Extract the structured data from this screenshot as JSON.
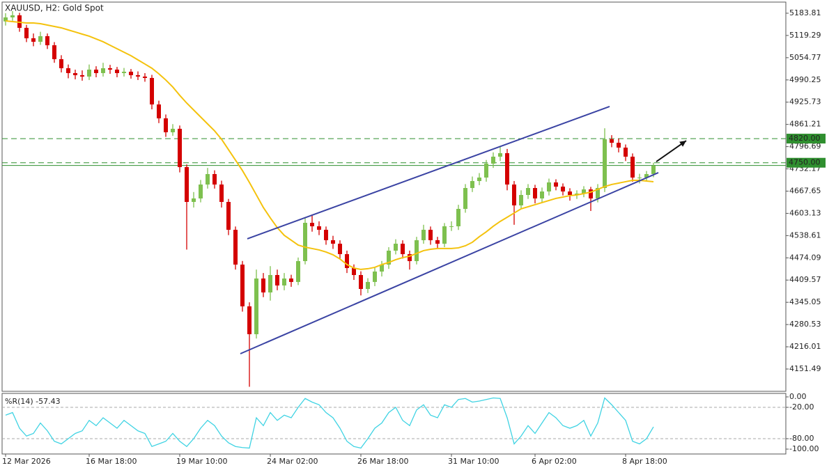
{
  "chart_data": [
    {
      "type": "candlestick",
      "title": "XAUUSD, H2:  Gold Spot",
      "categories": [
        "12 Mar 2026",
        null,
        null,
        null,
        null,
        null,
        null,
        null,
        null,
        null,
        null,
        null,
        "16 Mar 18:00",
        null,
        null,
        null,
        null,
        null,
        null,
        null,
        null,
        null,
        null,
        null,
        null,
        "19 Mar 10:00",
        null,
        null,
        null,
        null,
        null,
        null,
        null,
        null,
        null,
        null,
        null,
        null,
        "24 Mar 02:00",
        null,
        null,
        null,
        null,
        null,
        null,
        null,
        null,
        null,
        null,
        null,
        null,
        "26 Mar 18:00",
        null,
        null,
        null,
        null,
        null,
        null,
        null,
        null,
        null,
        null,
        null,
        null,
        "31 Mar 10:00",
        null,
        null,
        null,
        null,
        null,
        null,
        null,
        null,
        null,
        null,
        null,
        "6 Apr 02:00",
        null,
        null,
        null,
        null,
        null,
        null,
        null,
        null,
        null,
        null,
        null,
        null,
        "8 Apr 18:00",
        null,
        null,
        null,
        null
      ],
      "open": [
        5160.0,
        5171.7,
        5177.7,
        5141.4,
        5111.1,
        5101.0,
        5117.2,
        5090.9,
        5050.5,
        5024.2,
        5010.1,
        5004.0,
        5000.0,
        5020.2,
        5010.1,
        5024.2,
        5020.2,
        5010.1,
        5014.1,
        5004.0,
        5000.0,
        4996.0,
        4919.1,
        4878.8,
        4838.4,
        4848.5,
        4737.3,
        4636.3,
        4646.4,
        4686.8,
        4717.1,
        4686.8,
        4636.3,
        4555.5,
        4454.5,
        4333.3,
        4252.5,
        4414.1,
        4373.7,
        4424.2,
        4393.9,
        4414.1,
        4404.1,
        4464.6,
        4575.7,
        4565.6,
        4555.5,
        4525.2,
        4515.1,
        4484.8,
        4444.4,
        4424.2,
        4383.8,
        4404.1,
        4434.3,
        4454.5,
        4494.9,
        4515.1,
        4484.8,
        4464.6,
        4525.2,
        4555.5,
        4525.2,
        4515.1,
        4565.6,
        4565.6,
        4616.1,
        4676.7,
        4696.9,
        4707.0,
        4747.4,
        4767.6,
        4777.7,
        4686.8,
        4626.2,
        4656.5,
        4676.7,
        4646.4,
        4666.6,
        4692.9,
        4680.7,
        4666.6,
        4656.5,
        4660.5,
        4672.6,
        4646.4,
        4676.7,
        4818.1,
        4808.0,
        4793.9,
        4767.6,
        4707.0,
        4707.0,
        4717.1
      ],
      "high": [
        5183.8,
        5190,
        5185,
        5150,
        5125,
        5130,
        5125,
        5100,
        5062,
        5035,
        5020,
        5018,
        5035,
        5030,
        5040,
        5034,
        5028,
        5025,
        5022,
        5015,
        5010,
        5005,
        4930,
        4890,
        4862,
        4858,
        4745,
        4665,
        4700,
        4735,
        4728,
        4698,
        4645,
        4565,
        4465,
        4345,
        4440,
        4430,
        4450,
        4440,
        4430,
        4425,
        4475,
        4590,
        4600,
        4580,
        4565,
        4538,
        4525,
        4495,
        4455,
        4435,
        4415,
        4445,
        4465,
        4505,
        4528,
        4525,
        4495,
        4535,
        4570,
        4565,
        4535,
        4575,
        4580,
        4628,
        4688,
        4710,
        4720,
        4758,
        4780,
        4798,
        4790,
        4697,
        4670,
        4688,
        4686,
        4678,
        4704,
        4702,
        4690,
        4676,
        4670,
        4682,
        4680,
        4688,
        4850,
        4830,
        4820,
        4803,
        4777,
        4718,
        4726,
        4750
      ],
      "low": [
        5148,
        5162,
        5130,
        5100,
        5088,
        5092,
        5080,
        5040,
        5012,
        4995,
        4992,
        4988,
        4990,
        4998,
        5000,
        5008,
        4998,
        5000,
        4994,
        4990,
        4985,
        4905,
        4865,
        4825,
        4828,
        4722,
        4498,
        4620,
        4635,
        4675,
        4675,
        4620,
        4540,
        4440,
        4318,
        4100,
        4240,
        4360,
        4350,
        4380,
        4380,
        4390,
        4395,
        4455,
        4550,
        4540,
        4512,
        4500,
        4470,
        4430,
        4410,
        4365,
        4372,
        4392,
        4420,
        4442,
        4484,
        4472,
        4440,
        4455,
        4515,
        4512,
        4502,
        4505,
        4552,
        4555,
        4605,
        4665,
        4685,
        4695,
        4735,
        4755,
        4670,
        4570,
        4615,
        4645,
        4632,
        4635,
        4655,
        4670,
        4655,
        4640,
        4645,
        4650,
        4610,
        4635,
        4665,
        4795,
        4780,
        4755,
        4695,
        4690,
        4698,
        4708
      ],
      "close": [
        5171.7,
        5177.7,
        5141.4,
        5111.1,
        5101.0,
        5117.2,
        5090.9,
        5050.5,
        5024.2,
        5010.1,
        5004.0,
        5000.0,
        5020.2,
        5010.1,
        5024.2,
        5020.2,
        5010.1,
        5014.1,
        5004.0,
        5000.0,
        4996.0,
        4919.1,
        4878.8,
        4838.4,
        4848.5,
        4737.3,
        4636.3,
        4646.4,
        4686.8,
        4717.1,
        4686.8,
        4636.3,
        4555.5,
        4454.5,
        4333.3,
        4252.5,
        4414.1,
        4373.7,
        4424.2,
        4393.9,
        4414.1,
        4404.1,
        4464.6,
        4575.7,
        4565.6,
        4555.5,
        4525.2,
        4515.1,
        4484.8,
        4444.4,
        4424.2,
        4383.8,
        4404.1,
        4434.3,
        4454.5,
        4494.9,
        4515.1,
        4484.8,
        4464.6,
        4525.2,
        4555.5,
        4525.2,
        4515.1,
        4565.6,
        4565.6,
        4616.1,
        4676.7,
        4696.9,
        4707.0,
        4747.4,
        4767.6,
        4777.7,
        4686.8,
        4626.2,
        4656.5,
        4676.7,
        4646.4,
        4666.6,
        4692.9,
        4680.7,
        4666.6,
        4656.5,
        4660.5,
        4672.6,
        4646.4,
        4676.7,
        4818.1,
        4808.0,
        4793.9,
        4767.6,
        4707.0,
        4707.0,
        4717.1,
        4741.4
      ],
      "up_color": "#7ec04f",
      "down_color": "#d40000",
      "ylim": [
        4086.8,
        5216.1
      ],
      "yticks": [
        5183.81,
        5119.29,
        5054.77,
        4990.25,
        4925.73,
        4861.21,
        4796.69,
        4732.17,
        4667.65,
        4603.13,
        4538.61,
        4474.09,
        4409.57,
        4345.05,
        4280.53,
        4216.01,
        4151.49
      ],
      "moving_average": {
        "color": "#f4c20d",
        "values": [
          5161.6,
          5159.6,
          5157.6,
          5155.5,
          5155.5,
          5153.5,
          5149.5,
          5145.4,
          5141.4,
          5135.3,
          5129.3,
          5123.2,
          5117.2,
          5109.1,
          5101.0,
          5090.9,
          5080.8,
          5070.7,
          5060.6,
          5048.5,
          5036.4,
          5024.2,
          5008.1,
          4990.0,
          4969.7,
          4945.5,
          4923.2,
          4903.0,
          4882.8,
          4862.6,
          4842.4,
          4818.2,
          4787.9,
          4757.6,
          4727.3,
          4692.9,
          4656.6,
          4620.2,
          4589.9,
          4561.7,
          4539.4,
          4525.3,
          4511.2,
          4505.1,
          4501.1,
          4497.0,
          4491.0,
          4482.9,
          4470.8,
          4454.6,
          4444.5,
          4440.5,
          4442.5,
          4446.5,
          4454.6,
          4460.7,
          4468.7,
          4474.8,
          4478.8,
          4486.9,
          4495.0,
          4499.0,
          4501.1,
          4501.1,
          4501.1,
          4503.1,
          4509.1,
          4519.2,
          4535.4,
          4549.5,
          4565.7,
          4579.8,
          4591.9,
          4604.1,
          4616.2,
          4622.3,
          4628.3,
          4634.4,
          4640.4,
          4646.5,
          4650.5,
          4654.6,
          4656.6,
          4660.6,
          4664.7,
          4672.8,
          4680.8,
          4686.9,
          4690.9,
          4695.0,
          4699.0,
          4699.0,
          4697.0,
          4695.0
        ]
      },
      "levels": [
        {
          "value": 4820,
          "label": "4820.00",
          "style": "dashed"
        },
        {
          "value": 4750,
          "label": "4750.00",
          "style": "dashed"
        },
        {
          "value": 4742,
          "style": "solid"
        }
      ],
      "level_color": "#2f8f2f",
      "channel": {
        "color": "#3a43a3",
        "lines": [
          {
            "from": [
              34.7,
              4529.3
            ],
            "to": [
              86.7,
              4913.1
            ]
          },
          {
            "from": [
              33.7,
              4195.9
            ],
            "to": [
              93.7,
              4721.2
            ]
          }
        ]
      },
      "arrow": {
        "from": [
          93.4,
          4753
        ],
        "to": [
          97.7,
          4814
        ]
      }
    },
    {
      "type": "line",
      "title": "%R(14) -57.43",
      "color": "#3fd3e3",
      "values": [
        -35,
        -30,
        -60,
        -75,
        -70,
        -50,
        -65,
        -85,
        -90,
        -80,
        -70,
        -65,
        -45,
        -55,
        -40,
        -50,
        -60,
        -45,
        -55,
        -65,
        -70,
        -95,
        -90,
        -85,
        -70,
        -85,
        -95,
        -80,
        -60,
        -45,
        -55,
        -75,
        -88,
        -95,
        -97,
        -98,
        -40,
        -55,
        -30,
        -45,
        -35,
        -40,
        -20,
        -3,
        -10,
        -15,
        -30,
        -40,
        -60,
        -85,
        -95,
        -98,
        -80,
        -60,
        -50,
        -30,
        -20,
        -45,
        -55,
        -25,
        -15,
        -35,
        -40,
        -15,
        -20,
        -5,
        -3,
        -10,
        -8,
        -5,
        -2,
        -3,
        -40,
        -90,
        -75,
        -55,
        -70,
        -50,
        -30,
        -40,
        -55,
        -60,
        -55,
        -45,
        -75,
        -50,
        -2,
        -15,
        -30,
        -45,
        -85,
        -90,
        -80,
        -57.43
      ],
      "ylim": [
        -100,
        0
      ],
      "yticks": [
        {
          "value": 0,
          "label": "0.00"
        },
        {
          "value": -20,
          "label": "-20.00"
        },
        {
          "value": -80,
          "label": "-80.00"
        },
        {
          "value": -100,
          "label": "-100.00"
        }
      ]
    }
  ]
}
